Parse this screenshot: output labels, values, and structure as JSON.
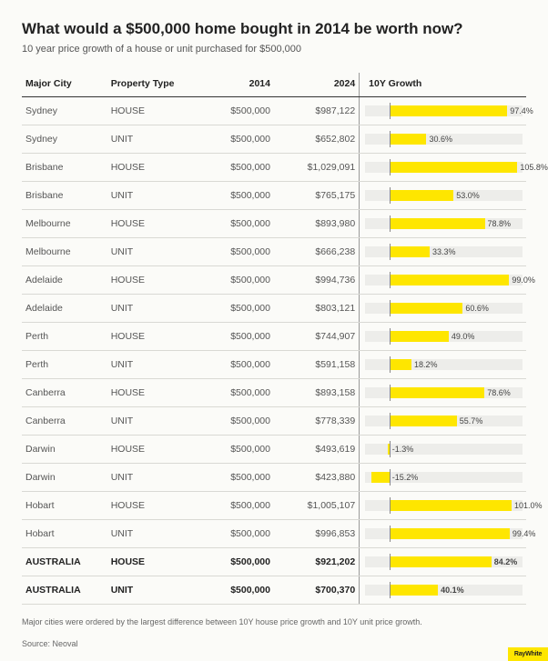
{
  "title": "What would a $500,000 home bought in 2014 be worth now?",
  "subtitle": "10 year price growth of a house or unit purchased for $500,000",
  "columns": [
    "Major City",
    "Property Type",
    "2014",
    "2024",
    "10Y Growth"
  ],
  "growth_axis": {
    "min": -20,
    "max": 110
  },
  "bar_color": "#fee600",
  "track_color": "#ededea",
  "rows": [
    {
      "city": "Sydney",
      "type": "HOUSE",
      "v2014": "$500,000",
      "v2024": "$987,122",
      "growth": 97.4,
      "label": "97.4%",
      "bold": false,
      "sep": false
    },
    {
      "city": "Sydney",
      "type": "UNIT",
      "v2014": "$500,000",
      "v2024": "$652,802",
      "growth": 30.6,
      "label": "30.6%",
      "bold": false,
      "sep": false
    },
    {
      "city": "Brisbane",
      "type": "HOUSE",
      "v2014": "$500,000",
      "v2024": "$1,029,091",
      "growth": 105.8,
      "label": "105.8%",
      "bold": false,
      "sep": true
    },
    {
      "city": "Brisbane",
      "type": "UNIT",
      "v2014": "$500,000",
      "v2024": "$765,175",
      "growth": 53.0,
      "label": "53.0%",
      "bold": false,
      "sep": false
    },
    {
      "city": "Melbourne",
      "type": "HOUSE",
      "v2014": "$500,000",
      "v2024": "$893,980",
      "growth": 78.8,
      "label": "78.8%",
      "bold": false,
      "sep": true
    },
    {
      "city": "Melbourne",
      "type": "UNIT",
      "v2014": "$500,000",
      "v2024": "$666,238",
      "growth": 33.3,
      "label": "33.3%",
      "bold": false,
      "sep": false
    },
    {
      "city": "Adelaide",
      "type": "HOUSE",
      "v2014": "$500,000",
      "v2024": "$994,736",
      "growth": 99.0,
      "label": "99.0%",
      "bold": false,
      "sep": true
    },
    {
      "city": "Adelaide",
      "type": "UNIT",
      "v2014": "$500,000",
      "v2024": "$803,121",
      "growth": 60.6,
      "label": "60.6%",
      "bold": false,
      "sep": false
    },
    {
      "city": "Perth",
      "type": "HOUSE",
      "v2014": "$500,000",
      "v2024": "$744,907",
      "growth": 49.0,
      "label": "49.0%",
      "bold": false,
      "sep": true
    },
    {
      "city": "Perth",
      "type": "UNIT",
      "v2014": "$500,000",
      "v2024": "$591,158",
      "growth": 18.2,
      "label": "18.2%",
      "bold": false,
      "sep": false
    },
    {
      "city": "Canberra",
      "type": "HOUSE",
      "v2014": "$500,000",
      "v2024": "$893,158",
      "growth": 78.6,
      "label": "78.6%",
      "bold": false,
      "sep": true
    },
    {
      "city": "Canberra",
      "type": "UNIT",
      "v2014": "$500,000",
      "v2024": "$778,339",
      "growth": 55.7,
      "label": "55.7%",
      "bold": false,
      "sep": false
    },
    {
      "city": "Darwin",
      "type": "HOUSE",
      "v2014": "$500,000",
      "v2024": "$493,619",
      "growth": -1.3,
      "label": "-1.3%",
      "bold": false,
      "sep": true
    },
    {
      "city": "Darwin",
      "type": "UNIT",
      "v2014": "$500,000",
      "v2024": "$423,880",
      "growth": -15.2,
      "label": "-15.2%",
      "bold": false,
      "sep": false
    },
    {
      "city": "Hobart",
      "type": "HOUSE",
      "v2014": "$500,000",
      "v2024": "$1,005,107",
      "growth": 101.0,
      "label": "101.0%",
      "bold": false,
      "sep": true
    },
    {
      "city": "Hobart",
      "type": "UNIT",
      "v2014": "$500,000",
      "v2024": "$996,853",
      "growth": 99.4,
      "label": "99.4%",
      "bold": false,
      "sep": false
    },
    {
      "city": "AUSTRALIA",
      "type": "HOUSE",
      "v2014": "$500,000",
      "v2024": "$921,202",
      "growth": 84.2,
      "label": "84.2%",
      "bold": true,
      "sep": true
    },
    {
      "city": "AUSTRALIA",
      "type": "UNIT",
      "v2014": "$500,000",
      "v2024": "$700,370",
      "growth": 40.1,
      "label": "40.1%",
      "bold": true,
      "sep": false
    }
  ],
  "footnote": "Major cities were ordered by the largest difference between 10Y house price growth and 10Y unit price growth.",
  "source": "Source: Neoval",
  "brand": "RayWhite"
}
